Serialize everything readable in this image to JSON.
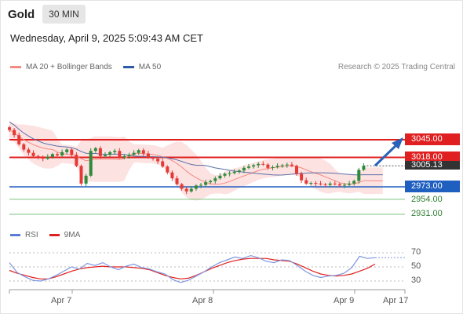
{
  "header": {
    "symbol": "Gold",
    "interval": "30 MIN"
  },
  "timestamp": "Wednesday, April 9, 2025 5:09:43 AM CET",
  "legend": {
    "ma20": {
      "label": "MA 20 + Bollinger Bands",
      "color": "#f28b82"
    },
    "ma50": {
      "label": "MA 50",
      "color": "#2f5aa8"
    }
  },
  "credit": "Research © 2025 Trading Central",
  "levels": {
    "resistance2": {
      "label": "3045.00",
      "color": "#e02020"
    },
    "resistance1": {
      "label": "3018.00",
      "color": "#e02020"
    },
    "current": {
      "label": "3005.13",
      "color": "#333333"
    },
    "pivot": {
      "label": "2973.00",
      "color": "#1f5fbf"
    },
    "support1": {
      "label": "2954.00",
      "color": "#4caf50"
    },
    "support2": {
      "label": "2931.00",
      "color": "#4caf50"
    }
  },
  "rsi_legend": {
    "rsi": {
      "label": "RSI",
      "color": "#5b7bd5"
    },
    "ma9": {
      "label": "9MA",
      "color": "#e02020"
    }
  },
  "rsi_ticks": [
    "70",
    "50",
    "30"
  ],
  "x_ticks": [
    "Apr 7",
    "Apr 8",
    "Apr 9",
    "Apr 17"
  ],
  "colors": {
    "bull": "#2e8b3a",
    "bear": "#e53935",
    "band_fill": "#fde2e2",
    "arrow": "#2a62b8"
  },
  "chart_data": {
    "type": "candlestick",
    "interval": "30 MIN",
    "price_levels": [
      3045.0,
      3018.0,
      3005.13,
      2973.0,
      2954.0,
      2931.0
    ],
    "close_approx": [
      3060,
      3052,
      3038,
      3030,
      3025,
      3020,
      3018,
      3016,
      3019,
      3023,
      3021,
      3026,
      3030,
      3022,
      3005,
      2978,
      2990,
      3028,
      3032,
      3020,
      3022,
      3026,
      3028,
      3018,
      3020,
      3022,
      3025,
      3029,
      3024,
      3018,
      3016,
      3012,
      3004,
      2995,
      2986,
      2977,
      2970,
      2966,
      2970,
      2975,
      2976,
      2980,
      2982,
      2986,
      2990,
      2993,
      2994,
      2996,
      2998,
      3002,
      3004,
      3006,
      3008,
      3007,
      3002,
      3003,
      3005,
      3006,
      3007,
      3005,
      2993,
      2983,
      2978,
      2979,
      2978,
      2977,
      2976,
      2978,
      2977,
      2975,
      2976,
      2978,
      2982,
      2999,
      3005
    ],
    "rsi_ticks": [
      70,
      50,
      30
    ],
    "rsi_approx": [
      56,
      42,
      36,
      31,
      30,
      33,
      38,
      44,
      50,
      47,
      55,
      52,
      56,
      50,
      46,
      51,
      54,
      49,
      47,
      43,
      40,
      32,
      28,
      31,
      37,
      43,
      50,
      56,
      60,
      64,
      62,
      66,
      63,
      58,
      56,
      60,
      59,
      52,
      44,
      38,
      35,
      37,
      38,
      41,
      49,
      65,
      62,
      63
    ],
    "rsi_ma9_approx": [
      45,
      41,
      38,
      35,
      33,
      33,
      36,
      40,
      44,
      47,
      49,
      50,
      51,
      50,
      50,
      50,
      49,
      48,
      46,
      42,
      38,
      35,
      33,
      34,
      38,
      43,
      48,
      52,
      56,
      59,
      61,
      62,
      62,
      62,
      60,
      59,
      58,
      54,
      49,
      44,
      40,
      38,
      37,
      38,
      40,
      44,
      48,
      54
    ]
  }
}
